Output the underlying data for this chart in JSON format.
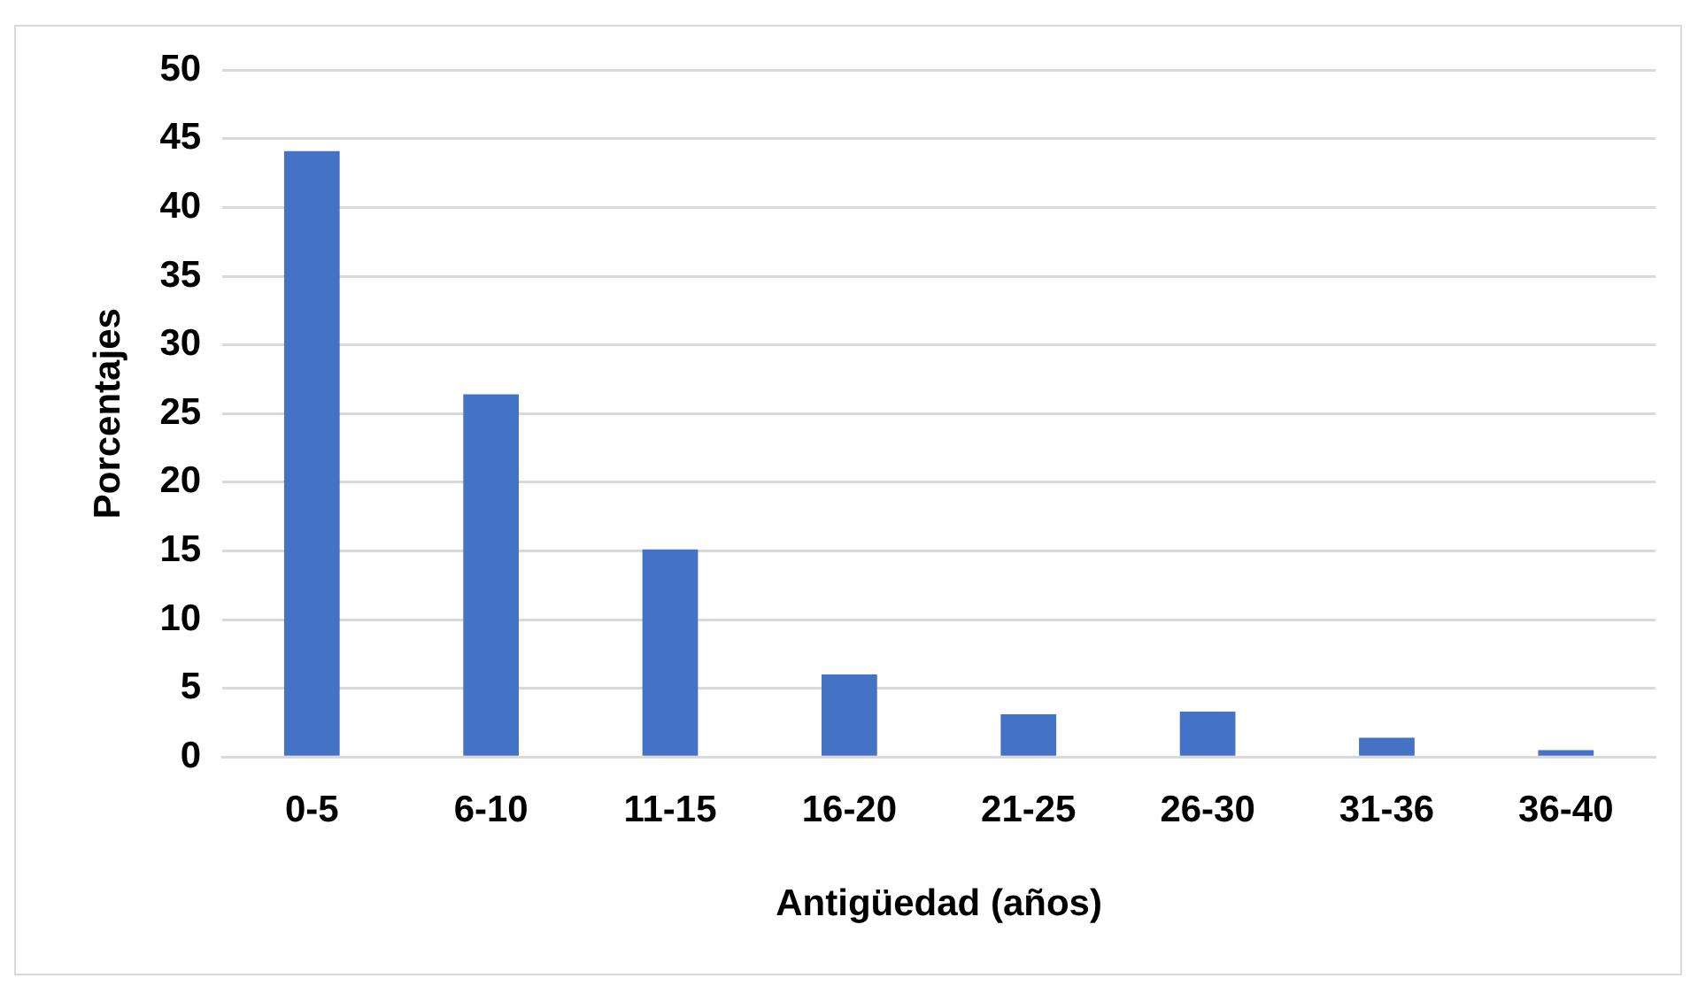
{
  "chart_data": {
    "type": "bar",
    "xlabel": "Antigüedad (años)",
    "ylabel": "Porcentajes",
    "categories": [
      "0-5",
      "6-10",
      "11-15",
      "16-20",
      "21-25",
      "26-30",
      "31-36",
      "36-40"
    ],
    "values": [
      44.1,
      26.4,
      15.1,
      6.0,
      3.1,
      3.3,
      1.4,
      0.5
    ],
    "color": "#4472c4",
    "ylim": [
      0,
      50
    ],
    "yticks": [
      0,
      5,
      10,
      15,
      20,
      25,
      30,
      35,
      40,
      45,
      50
    ],
    "grid": "y",
    "legend": false
  }
}
